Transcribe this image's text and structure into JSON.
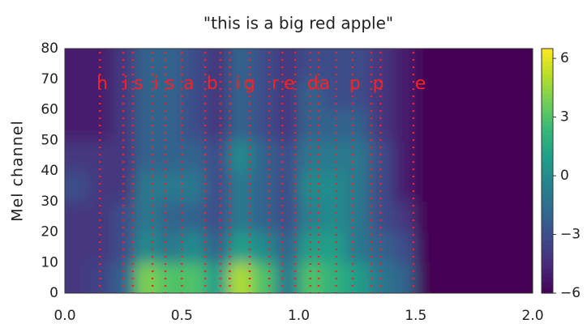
{
  "chart_data": {
    "type": "heatmap",
    "title": "\"this is a big red apple\"",
    "ylabel": "Mel channel",
    "xlim": [
      0,
      2
    ],
    "ylim": [
      0,
      80
    ],
    "xticks": [
      {
        "value": 0,
        "label": "0.0"
      },
      {
        "value": 0.5,
        "label": "0.5"
      },
      {
        "value": 1,
        "label": "1.0"
      },
      {
        "value": 1.5,
        "label": "1.5"
      },
      {
        "value": 2,
        "label": "2.0"
      }
    ],
    "yticks": [
      0,
      10,
      20,
      30,
      40,
      50,
      60,
      70,
      80
    ],
    "colormap": "viridis",
    "clim": [
      -6,
      6.5
    ],
    "colorbar_ticks": [
      {
        "value": 6,
        "label": "6"
      },
      {
        "value": 3,
        "label": "3"
      },
      {
        "value": 0,
        "label": "0"
      },
      {
        "value": -3,
        "label": "−3"
      },
      {
        "value": -6,
        "label": "−6"
      }
    ],
    "z": [
      [
        -4,
        -3.5,
        -2,
        4,
        3,
        3,
        1,
        5,
        3,
        -1,
        3,
        2,
        1,
        -1,
        -2,
        -6,
        -6,
        -6,
        -6,
        -6
      ],
      [
        -4,
        -4,
        -3,
        0,
        -1,
        0,
        -2,
        1,
        0,
        -2,
        1,
        1,
        -1,
        -2,
        -3,
        -6,
        -6,
        -6,
        -6,
        -6
      ],
      [
        -4,
        -4,
        -3,
        -1,
        -2,
        -2,
        -3,
        -1,
        -2,
        -3,
        -0.5,
        0,
        -1,
        -3,
        -4,
        -6,
        -6,
        -6,
        -6,
        -6
      ],
      [
        -3,
        -4,
        -4,
        -1,
        -1,
        -1,
        -3,
        -1,
        -2,
        -3,
        0,
        0,
        -1,
        -3,
        -5,
        -6,
        -6,
        -6,
        -6,
        -6
      ],
      [
        -4,
        -4,
        -4,
        -2,
        -2,
        -2,
        -3,
        0,
        -2,
        -3,
        -1,
        -1,
        -1,
        -3,
        -5,
        -6,
        -6,
        -6,
        -6,
        -6
      ],
      [
        -5,
        -5,
        -4,
        -2,
        -2,
        -3,
        -4,
        -2,
        -3,
        -4,
        -2,
        -2,
        -2,
        -4,
        -5,
        -6,
        -6,
        -6,
        -6,
        -6
      ],
      [
        -5,
        -5,
        -4,
        -2,
        -2,
        -3,
        -4,
        -2,
        -3,
        -4,
        -2,
        -3,
        -3,
        -4,
        -5,
        -6,
        -6,
        -6,
        -6,
        -6
      ],
      [
        -5,
        -5,
        -4,
        -2,
        -2,
        -3,
        -4,
        -2,
        -3,
        -4,
        -3,
        -3,
        -3,
        -4,
        -5,
        -6,
        -6,
        -6,
        -6,
        -6
      ]
    ],
    "boundary_color": "#ff2020",
    "boundaries": [
      0.15,
      0.25,
      0.29,
      0.375,
      0.43,
      0.5,
      0.6,
      0.665,
      0.705,
      0.79,
      0.874,
      0.93,
      0.985,
      1.05,
      1.085,
      1.16,
      1.23,
      1.31,
      1.35,
      1.49
    ],
    "phonemes": [
      {
        "label": "h",
        "x": 0.16
      },
      {
        "label": "i",
        "x": 0.26
      },
      {
        "label": "s",
        "x": 0.315
      },
      {
        "label": "i",
        "x": 0.39
      },
      {
        "label": "s",
        "x": 0.45
      },
      {
        "label": "a",
        "x": 0.53
      },
      {
        "label": "b",
        "x": 0.63
      },
      {
        "label": "i",
        "x": 0.74
      },
      {
        "label": "g",
        "x": 0.79
      },
      {
        "label": "r",
        "x": 0.9
      },
      {
        "label": "e",
        "x": 0.96
      },
      {
        "label": "d",
        "x": 1.06
      },
      {
        "label": "a",
        "x": 1.11
      },
      {
        "label": "p",
        "x": 1.24
      },
      {
        "label": "p",
        "x": 1.34
      },
      {
        "label": "e",
        "x": 1.52
      }
    ]
  }
}
